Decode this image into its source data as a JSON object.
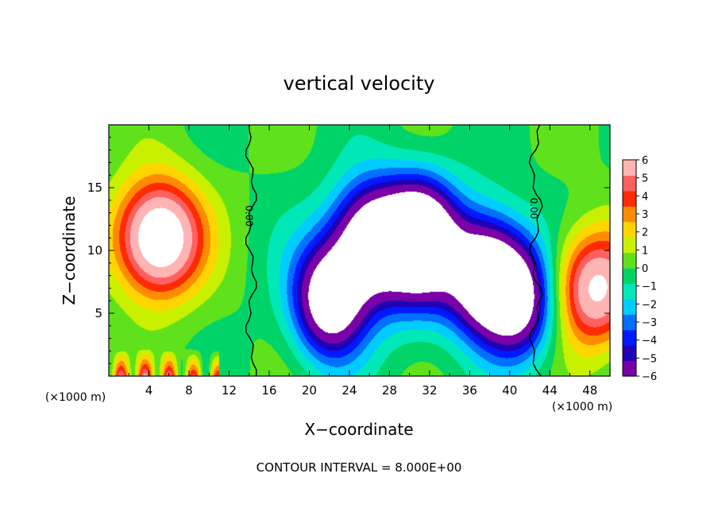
{
  "chart_data": {
    "type": "heatmap",
    "title": "vertical velocity",
    "xlabel": "X−coordinate",
    "ylabel": "Z−coordinate",
    "x_unit": "(×1000 m)",
    "xlim": [
      0,
      50
    ],
    "ylim": [
      0,
      20
    ],
    "x_ticks": [
      "4",
      "8",
      "12",
      "16",
      "20",
      "24",
      "28",
      "32",
      "36",
      "40",
      "44",
      "48"
    ],
    "y_ticks": [
      "5",
      "10",
      "15"
    ],
    "colorbar": {
      "ticks": [
        "6",
        "5",
        "4",
        "3",
        "2",
        "1",
        "0",
        "−1",
        "−2",
        "−3",
        "−4",
        "−5",
        "−6"
      ],
      "range": [
        -6,
        6
      ],
      "colors": [
        "#7a00a8",
        "#1f00b4",
        "#0019ff",
        "#0070ff",
        "#00ccff",
        "#00e8b8",
        "#00d468",
        "#5fe21c",
        "#c8f000",
        "#ffd400",
        "#ff8c00",
        "#ff2a00",
        "#ff6060",
        "#ffb4b4"
      ]
    },
    "contour_labels": [
      "0.00",
      "0.00"
    ],
    "annotation": "CONTOUR INTERVAL = 8.000E+00",
    "features": [
      {
        "kind": "updraft",
        "x": 5,
        "z": 11,
        "strength": 9
      },
      {
        "kind": "updraft",
        "x": 48.5,
        "z": 7,
        "strength": 7
      },
      {
        "kind": "downdraft",
        "x": 31,
        "z": 11,
        "strength": -9
      },
      {
        "kind": "downdraft",
        "x": 22,
        "z": 6,
        "strength": -8
      },
      {
        "kind": "downdraft",
        "x": 37.5,
        "z": 8,
        "strength": -8
      },
      {
        "kind": "downdraft",
        "x": 26,
        "z": 11,
        "strength": -7
      },
      {
        "kind": "downdraft",
        "x": 41,
        "z": 6,
        "strength": -7
      }
    ]
  }
}
